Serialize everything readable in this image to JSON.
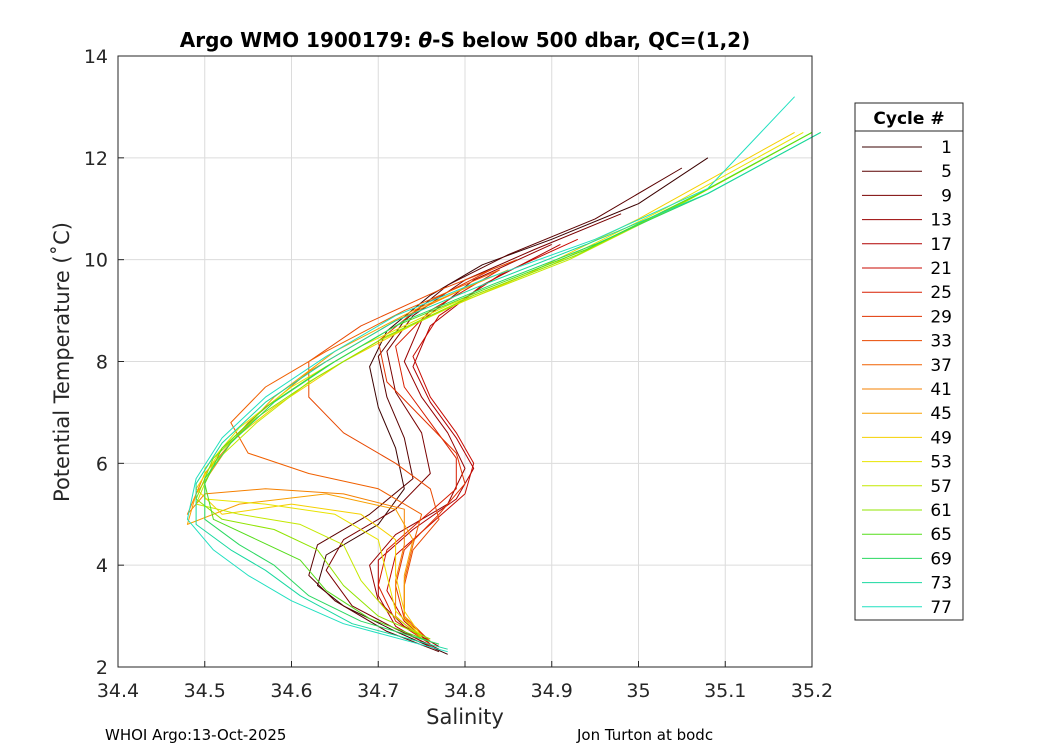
{
  "chart_data": {
    "type": "line",
    "title_prefix": "Argo WMO 1900179: ",
    "title_theta": "θ",
    "title_suffix": "-S below 500 dbar,  QC=(1,2)",
    "xlabel": "Salinity",
    "ylabel": "Potential Temperature (˚C)",
    "xlim": [
      34.4,
      35.2
    ],
    "ylim": [
      2,
      14
    ],
    "xticks": [
      "34.4",
      "34.5",
      "34.6",
      "34.7",
      "34.8",
      "34.9",
      "35",
      "35.1",
      "35.2"
    ],
    "yticks": [
      "2",
      "4",
      "6",
      "8",
      "10",
      "12",
      "14"
    ],
    "grid": true,
    "legend_title": "Cycle #",
    "legend_position": "outside-right",
    "series": [
      {
        "name": "1",
        "color": "#3a0000",
        "values": [
          [
            34.78,
            2.25
          ],
          [
            34.72,
            2.7
          ],
          [
            34.66,
            3.2
          ],
          [
            34.63,
            3.6
          ],
          [
            34.64,
            4.2
          ],
          [
            34.7,
            4.8
          ],
          [
            34.73,
            5.5
          ],
          [
            34.72,
            6.3
          ],
          [
            34.7,
            7.1
          ],
          [
            34.69,
            7.9
          ],
          [
            34.71,
            8.6
          ],
          [
            34.76,
            9.3
          ],
          [
            34.82,
            9.9
          ],
          [
            34.9,
            10.4
          ],
          [
            35.0,
            11.1
          ],
          [
            35.08,
            12.0
          ]
        ]
      },
      {
        "name": "5",
        "color": "#5a0000",
        "values": [
          [
            34.77,
            2.3
          ],
          [
            34.71,
            2.7
          ],
          [
            34.65,
            3.3
          ],
          [
            34.62,
            3.8
          ],
          [
            34.63,
            4.4
          ],
          [
            34.69,
            5.0
          ],
          [
            34.74,
            5.7
          ],
          [
            34.73,
            6.5
          ],
          [
            34.71,
            7.3
          ],
          [
            34.7,
            8.1
          ],
          [
            34.73,
            8.8
          ],
          [
            34.78,
            9.5
          ],
          [
            34.85,
            10.1
          ],
          [
            34.95,
            10.8
          ],
          [
            35.05,
            11.8
          ]
        ]
      },
      {
        "name": "9",
        "color": "#7a0000",
        "values": [
          [
            34.77,
            2.35
          ],
          [
            34.72,
            2.75
          ],
          [
            34.67,
            3.2
          ],
          [
            34.64,
            3.9
          ],
          [
            34.66,
            4.5
          ],
          [
            34.72,
            5.1
          ],
          [
            34.76,
            5.8
          ],
          [
            34.75,
            6.6
          ],
          [
            34.72,
            7.4
          ],
          [
            34.71,
            8.2
          ],
          [
            34.74,
            8.9
          ],
          [
            34.8,
            9.6
          ],
          [
            34.88,
            10.2
          ],
          [
            34.98,
            10.9
          ]
        ]
      },
      {
        "name": "13",
        "color": "#980000",
        "values": [
          [
            34.77,
            2.4
          ],
          [
            34.73,
            2.8
          ],
          [
            34.7,
            3.3
          ],
          [
            34.69,
            4.0
          ],
          [
            34.72,
            4.6
          ],
          [
            34.78,
            5.2
          ],
          [
            34.8,
            5.9
          ],
          [
            34.78,
            6.6
          ],
          [
            34.75,
            7.3
          ],
          [
            34.73,
            8.0
          ],
          [
            34.75,
            8.8
          ],
          [
            34.81,
            9.6
          ],
          [
            34.9,
            10.3
          ]
        ]
      },
      {
        "name": "17",
        "color": "#b00000",
        "values": [
          [
            34.76,
            2.4
          ],
          [
            34.72,
            2.8
          ],
          [
            34.7,
            3.4
          ],
          [
            34.7,
            4.1
          ],
          [
            34.74,
            4.7
          ],
          [
            34.79,
            5.3
          ],
          [
            34.81,
            5.9
          ],
          [
            34.79,
            6.5
          ],
          [
            34.76,
            7.2
          ],
          [
            34.74,
            7.9
          ],
          [
            34.76,
            8.7
          ],
          [
            34.82,
            9.5
          ],
          [
            34.91,
            10.3
          ]
        ]
      },
      {
        "name": "21",
        "color": "#c80a00",
        "values": [
          [
            34.76,
            2.45
          ],
          [
            34.73,
            2.9
          ],
          [
            34.71,
            3.5
          ],
          [
            34.72,
            4.2
          ],
          [
            34.76,
            4.8
          ],
          [
            34.8,
            5.4
          ],
          [
            34.81,
            6.0
          ],
          [
            34.79,
            6.6
          ],
          [
            34.76,
            7.3
          ],
          [
            34.74,
            8.1
          ],
          [
            34.77,
            8.9
          ],
          [
            34.84,
            9.7
          ],
          [
            34.93,
            10.4
          ]
        ]
      },
      {
        "name": "25",
        "color": "#d81e00",
        "values": [
          [
            34.76,
            2.45
          ],
          [
            34.72,
            2.9
          ],
          [
            34.7,
            3.6
          ],
          [
            34.71,
            4.3
          ],
          [
            34.75,
            4.9
          ],
          [
            34.79,
            5.5
          ],
          [
            34.79,
            6.1
          ],
          [
            34.76,
            6.8
          ],
          [
            34.73,
            7.5
          ],
          [
            34.72,
            8.3
          ],
          [
            34.76,
            9.0
          ],
          [
            34.84,
            9.8
          ]
        ]
      },
      {
        "name": "29",
        "color": "#e03200",
        "values": [
          [
            34.76,
            2.5
          ],
          [
            34.73,
            2.95
          ],
          [
            34.72,
            3.6
          ],
          [
            34.73,
            4.3
          ],
          [
            34.77,
            5.0
          ],
          [
            34.8,
            5.6
          ],
          [
            34.79,
            6.2
          ],
          [
            34.75,
            6.9
          ],
          [
            34.71,
            7.6
          ],
          [
            34.7,
            8.4
          ],
          [
            34.75,
            9.1
          ],
          [
            34.83,
            9.8
          ]
        ]
      },
      {
        "name": "33",
        "color": "#e84800",
        "values": [
          [
            34.76,
            2.5
          ],
          [
            34.73,
            3.0
          ],
          [
            34.73,
            3.6
          ],
          [
            34.74,
            4.3
          ],
          [
            34.77,
            4.9
          ],
          [
            34.76,
            5.5
          ],
          [
            34.72,
            6.0
          ],
          [
            34.66,
            6.6
          ],
          [
            34.62,
            7.3
          ],
          [
            34.62,
            8.0
          ],
          [
            34.68,
            8.7
          ],
          [
            34.77,
            9.4
          ],
          [
            34.86,
            10.0
          ]
        ]
      },
      {
        "name": "37",
        "color": "#f06000",
        "values": [
          [
            34.75,
            2.55
          ],
          [
            34.73,
            3.0
          ],
          [
            34.73,
            3.7
          ],
          [
            34.74,
            4.4
          ],
          [
            34.75,
            5.0
          ],
          [
            34.7,
            5.5
          ],
          [
            34.62,
            5.8
          ],
          [
            34.55,
            6.2
          ],
          [
            34.53,
            6.8
          ],
          [
            34.57,
            7.5
          ],
          [
            34.64,
            8.2
          ],
          [
            34.73,
            9.0
          ],
          [
            34.84,
            9.8
          ]
        ]
      },
      {
        "name": "41",
        "color": "#f58000",
        "values": [
          [
            34.75,
            2.55
          ],
          [
            34.72,
            3.0
          ],
          [
            34.72,
            3.7
          ],
          [
            34.73,
            4.4
          ],
          [
            34.73,
            5.1
          ],
          [
            34.66,
            5.4
          ],
          [
            34.57,
            5.5
          ],
          [
            34.5,
            5.4
          ],
          [
            34.48,
            5.0
          ],
          [
            34.5,
            5.8
          ],
          [
            34.55,
            6.8
          ],
          [
            34.62,
            7.8
          ],
          [
            34.72,
            8.8
          ],
          [
            34.82,
            9.6
          ]
        ]
      },
      {
        "name": "45",
        "color": "#f8a000",
        "values": [
          [
            34.75,
            2.55
          ],
          [
            34.73,
            3.0
          ],
          [
            34.73,
            3.8
          ],
          [
            34.74,
            4.5
          ],
          [
            34.72,
            5.1
          ],
          [
            34.64,
            5.4
          ],
          [
            34.54,
            5.2
          ],
          [
            34.48,
            4.8
          ],
          [
            34.49,
            5.4
          ],
          [
            34.53,
            6.4
          ],
          [
            34.58,
            7.3
          ],
          [
            34.65,
            8.2
          ],
          [
            34.74,
            9.0
          ],
          [
            34.85,
            9.8
          ]
        ]
      },
      {
        "name": "49",
        "color": "#f5d000",
        "values": [
          [
            34.75,
            2.6
          ],
          [
            34.73,
            3.1
          ],
          [
            34.72,
            3.8
          ],
          [
            34.72,
            4.5
          ],
          [
            34.68,
            5.0
          ],
          [
            34.6,
            5.2
          ],
          [
            34.52,
            5.0
          ],
          [
            34.49,
            5.5
          ],
          [
            34.52,
            6.3
          ],
          [
            34.58,
            7.1
          ],
          [
            34.66,
            8.0
          ],
          [
            34.76,
            8.9
          ],
          [
            34.87,
            9.7
          ],
          [
            35.0,
            10.8
          ],
          [
            35.18,
            12.5
          ]
        ]
      },
      {
        "name": "53",
        "color": "#e8e400",
        "values": [
          [
            34.75,
            2.6
          ],
          [
            34.72,
            3.1
          ],
          [
            34.71,
            3.8
          ],
          [
            34.7,
            4.5
          ],
          [
            34.65,
            5.0
          ],
          [
            34.57,
            5.2
          ],
          [
            34.5,
            5.3
          ],
          [
            34.5,
            5.9
          ],
          [
            34.54,
            6.7
          ],
          [
            34.6,
            7.5
          ],
          [
            34.68,
            8.3
          ],
          [
            34.78,
            9.1
          ],
          [
            34.9,
            9.9
          ],
          [
            35.03,
            11.0
          ],
          [
            35.19,
            12.5
          ]
        ]
      },
      {
        "name": "57",
        "color": "#c4e800",
        "values": [
          [
            34.75,
            2.6
          ],
          [
            34.71,
            3.1
          ],
          [
            34.68,
            3.7
          ],
          [
            34.66,
            4.4
          ],
          [
            34.61,
            4.8
          ],
          [
            34.54,
            5.0
          ],
          [
            34.49,
            5.2
          ],
          [
            34.51,
            6.0
          ],
          [
            34.56,
            6.8
          ],
          [
            34.62,
            7.6
          ],
          [
            34.7,
            8.4
          ],
          [
            34.8,
            9.2
          ],
          [
            34.92,
            10.0
          ],
          [
            35.05,
            11.1
          ],
          [
            35.2,
            12.5
          ]
        ]
      },
      {
        "name": "61",
        "color": "#90e400",
        "values": [
          [
            34.76,
            2.55
          ],
          [
            34.7,
            3.0
          ],
          [
            34.66,
            3.6
          ],
          [
            34.63,
            4.3
          ],
          [
            34.58,
            4.7
          ],
          [
            34.52,
            4.9
          ],
          [
            34.49,
            5.3
          ],
          [
            34.51,
            6.1
          ],
          [
            34.56,
            6.9
          ],
          [
            34.63,
            7.7
          ],
          [
            34.71,
            8.5
          ],
          [
            34.81,
            9.3
          ],
          [
            34.93,
            10.1
          ],
          [
            35.06,
            11.2
          ],
          [
            35.2,
            12.5
          ]
        ]
      },
      {
        "name": "65",
        "color": "#55dd1a",
        "values": [
          [
            34.76,
            2.5
          ],
          [
            34.69,
            2.95
          ],
          [
            34.64,
            3.5
          ],
          [
            34.61,
            4.1
          ],
          [
            34.56,
            4.5
          ],
          [
            34.51,
            4.9
          ],
          [
            34.5,
            5.6
          ],
          [
            34.52,
            6.3
          ],
          [
            34.57,
            7.1
          ],
          [
            34.64,
            7.9
          ],
          [
            34.72,
            8.7
          ],
          [
            34.82,
            9.4
          ],
          [
            34.94,
            10.2
          ],
          [
            35.07,
            11.3
          ],
          [
            35.2,
            12.5
          ]
        ]
      },
      {
        "name": "69",
        "color": "#2ad860",
        "values": [
          [
            34.77,
            2.45
          ],
          [
            34.68,
            2.9
          ],
          [
            34.62,
            3.4
          ],
          [
            34.58,
            4.0
          ],
          [
            34.54,
            4.4
          ],
          [
            34.5,
            4.9
          ],
          [
            34.5,
            5.7
          ],
          [
            34.53,
            6.4
          ],
          [
            34.58,
            7.2
          ],
          [
            34.65,
            8.0
          ],
          [
            34.73,
            8.8
          ],
          [
            34.83,
            9.5
          ],
          [
            34.95,
            10.3
          ],
          [
            35.08,
            11.3
          ],
          [
            35.21,
            12.5
          ]
        ]
      },
      {
        "name": "73",
        "color": "#18d8a0",
        "values": [
          [
            34.78,
            2.35
          ],
          [
            34.67,
            2.85
          ],
          [
            34.61,
            3.4
          ],
          [
            34.57,
            3.9
          ],
          [
            34.53,
            4.3
          ],
          [
            34.49,
            4.8
          ],
          [
            34.49,
            5.6
          ],
          [
            34.52,
            6.4
          ],
          [
            34.57,
            7.2
          ],
          [
            34.64,
            8.0
          ],
          [
            34.72,
            8.8
          ],
          [
            34.82,
            9.5
          ],
          [
            34.94,
            10.3
          ],
          [
            35.08,
            11.3
          ],
          [
            35.21,
            12.5
          ]
        ]
      },
      {
        "name": "77",
        "color": "#20e0c0",
        "values": [
          [
            34.78,
            2.3
          ],
          [
            34.66,
            2.85
          ],
          [
            34.6,
            3.3
          ],
          [
            34.55,
            3.8
          ],
          [
            34.51,
            4.3
          ],
          [
            34.48,
            4.9
          ],
          [
            34.49,
            5.7
          ],
          [
            34.52,
            6.5
          ],
          [
            34.57,
            7.3
          ],
          [
            34.64,
            8.1
          ],
          [
            34.72,
            8.9
          ],
          [
            34.82,
            9.6
          ],
          [
            34.95,
            10.4
          ],
          [
            35.08,
            11.4
          ],
          [
            35.18,
            13.2
          ]
        ]
      }
    ]
  },
  "footer": {
    "left": "WHOI Argo:13-Oct-2025",
    "right": "Jon Turton at bodc"
  }
}
